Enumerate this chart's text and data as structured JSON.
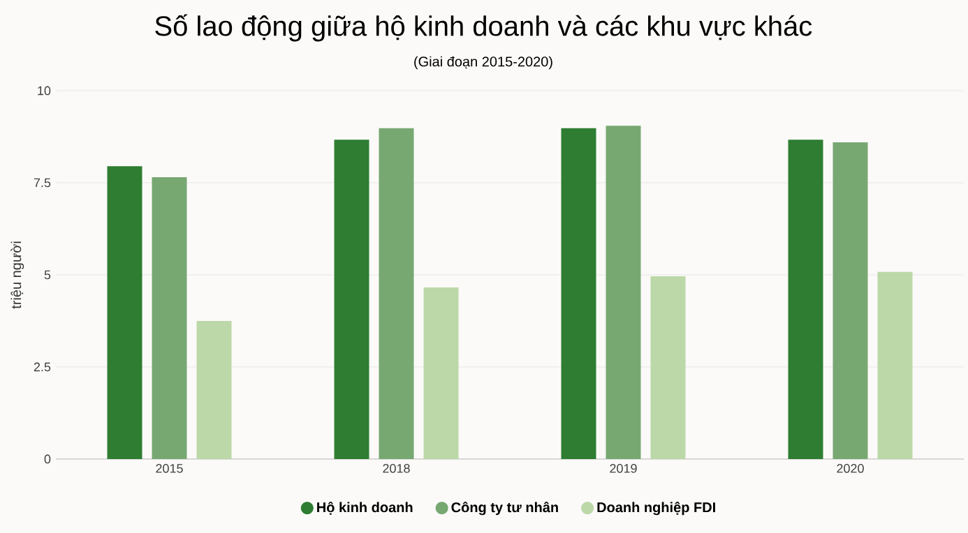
{
  "chart_data": {
    "type": "bar",
    "title": "Số lao động giữa hộ kinh doanh và các khu vực khác",
    "subtitle": "(Giai đoạn 2015-2020)",
    "ylabel": "triệu người",
    "categories": [
      "2015",
      "2018",
      "2019",
      "2020"
    ],
    "series": [
      {
        "name": "Hộ kinh doanh",
        "color": "#2e7d32",
        "values": [
          7.95,
          8.67,
          8.98,
          8.67
        ]
      },
      {
        "name": "Công ty tư nhân",
        "color": "#77a872",
        "values": [
          7.65,
          8.98,
          9.05,
          8.6
        ]
      },
      {
        "name": "Doanh nghiệp FDI",
        "color": "#bcd8a8",
        "values": [
          3.75,
          4.66,
          4.96,
          5.08
        ]
      }
    ],
    "ylim": [
      0,
      10
    ],
    "yticks": [
      0,
      2.5,
      5,
      7.5,
      10
    ],
    "grid": "y",
    "legend": "bottom"
  }
}
